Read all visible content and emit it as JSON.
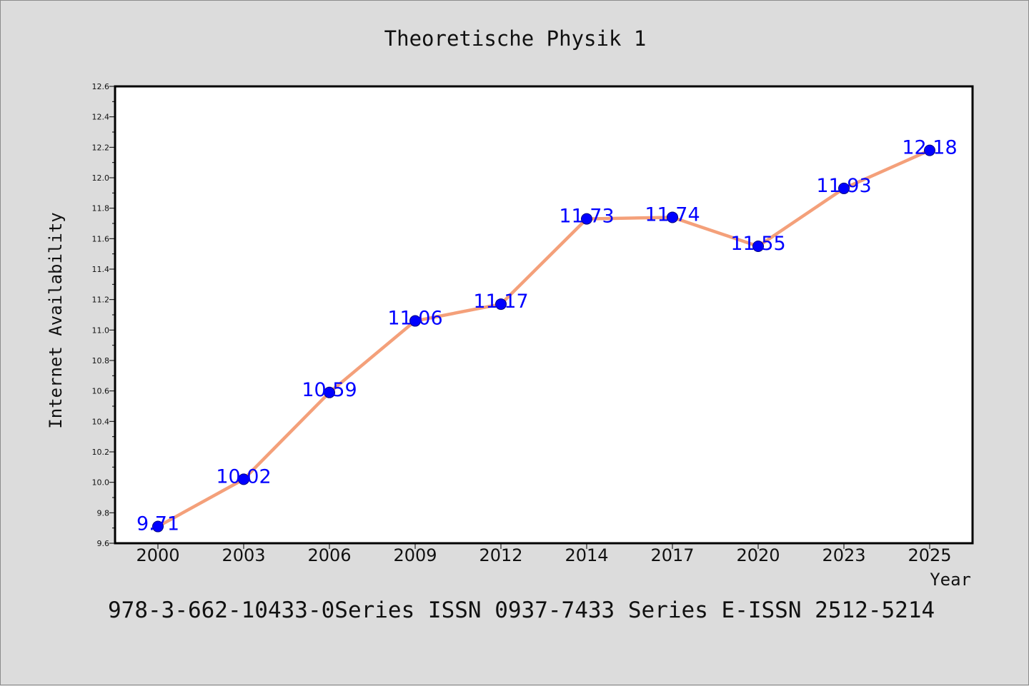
{
  "chart_data": {
    "type": "line",
    "title": "Theoretische Physik 1",
    "xlabel": "Year",
    "ylabel": "Internet Availability",
    "categories": [
      "2000",
      "2003",
      "2006",
      "2009",
      "2012",
      "2014",
      "2017",
      "2020",
      "2023",
      "2025"
    ],
    "series": [
      {
        "values": [
          9.71,
          10.02,
          10.59,
          11.06,
          11.17,
          11.73,
          11.74,
          11.55,
          11.93,
          12.18
        ],
        "line_color": "#f4a07a",
        "marker_color": "#0000ff"
      }
    ],
    "data_labels": [
      "9.71",
      "10.02",
      "10.59",
      "11.06",
      "11.17",
      "11.73",
      "11.74",
      "11.55",
      "11.93",
      "12.18"
    ],
    "ylim": [
      9.6,
      12.6
    ],
    "yticks": [
      "9.6",
      "9.8",
      "10.0",
      "10.2",
      "10.4",
      "10.6",
      "10.8",
      "11.0",
      "11.2",
      "11.4",
      "11.6",
      "11.8",
      "12.0",
      "12.2",
      "12.4",
      "12.6"
    ],
    "grid": false,
    "legend": "none"
  },
  "footer": {
    "text": "978-3-662-10433-0Series ISSN 0937-7433 Series E-ISSN 2512-5214"
  }
}
